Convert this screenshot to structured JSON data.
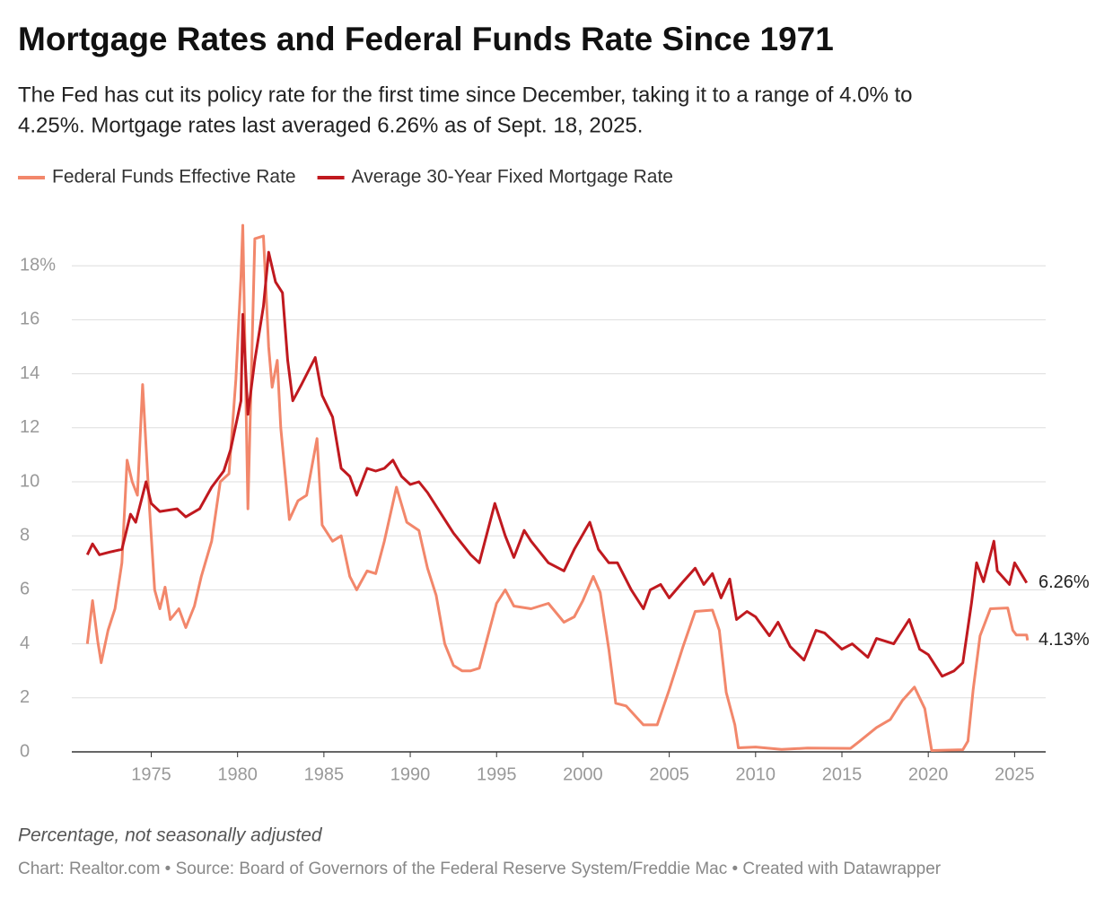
{
  "chart_data": {
    "type": "line",
    "title": "Mortgage Rates and Federal Funds Rate Since 1971",
    "subtitle": [
      "The Fed has cut its policy rate for the first time since December, taking it to a range of 4.0% to",
      "4.25%. Mortgage rates last averaged 6.26% as of Sept. 18, 2025."
    ],
    "note": "Percentage, not seasonally adjusted",
    "source": "Chart: Realtor.com • Source: Board of Governors of the Federal Reserve System/Freddie Mac • Created with Datawrapper",
    "xlim": [
      1970.4,
      2026.8
    ],
    "xticks": [
      1975,
      1980,
      1985,
      1990,
      1995,
      2000,
      2005,
      2010,
      2015,
      2020,
      2025
    ],
    "ylim": [
      0,
      20
    ],
    "yticks": [
      0,
      2,
      4,
      6,
      8,
      10,
      12,
      14,
      {
        "value": 16,
        "label": "16"
      },
      {
        "value": 18,
        "label": "18%"
      }
    ],
    "grid": true,
    "series": [
      {
        "name": "Federal Funds Effective Rate",
        "color": "#f2876b",
        "end_label": "4.13%",
        "x": [
          1971.3,
          1971.6,
          1971.9,
          1972.1,
          1972.5,
          1972.9,
          1973.3,
          1973.6,
          1973.9,
          1974.2,
          1974.5,
          1974.9,
          1975.2,
          1975.5,
          1975.8,
          1976.1,
          1976.6,
          1977.0,
          1977.5,
          1977.9,
          1978.5,
          1979.0,
          1979.5,
          1979.9,
          1980.2,
          1980.3,
          1980.6,
          1981.0,
          1981.5,
          1981.8,
          1982.0,
          1982.3,
          1982.5,
          1982.8,
          1983.0,
          1983.5,
          1984.0,
          1984.6,
          1984.9,
          1985.5,
          1986.0,
          1986.5,
          1986.9,
          1987.5,
          1988.0,
          1988.5,
          1989.2,
          1989.8,
          1990.5,
          1991.0,
          1991.5,
          1992.0,
          1992.5,
          1993.0,
          1993.5,
          1994.0,
          1994.5,
          1995.0,
          1995.5,
          1996.0,
          1997.0,
          1998.0,
          1998.9,
          1999.5,
          2000.0,
          2000.6,
          2001.0,
          2001.5,
          2001.9,
          2002.5,
          2003.5,
          2004.3,
          2005.0,
          2005.8,
          2006.5,
          2007.5,
          2007.9,
          2008.3,
          2008.8,
          2009.0,
          2010.0,
          2011.5,
          2013.0,
          2015.5,
          2016.0,
          2017.0,
          2017.8,
          2018.5,
          2019.2,
          2019.8,
          2020.2,
          2022.0,
          2022.3,
          2022.6,
          2023.0,
          2023.6,
          2024.6,
          2024.9,
          2025.1,
          2025.7,
          2025.75
        ],
        "values": [
          4.0,
          5.6,
          4.1,
          3.3,
          4.5,
          5.3,
          7.0,
          10.8,
          10.0,
          9.5,
          13.6,
          9.0,
          6.0,
          5.3,
          6.1,
          4.9,
          5.3,
          4.6,
          5.4,
          6.5,
          7.8,
          10.0,
          10.3,
          13.8,
          17.6,
          19.5,
          9.0,
          19.0,
          19.1,
          15.0,
          13.5,
          14.5,
          12.0,
          10.0,
          8.6,
          9.3,
          9.5,
          11.6,
          8.4,
          7.8,
          8.0,
          6.5,
          6.0,
          6.7,
          6.6,
          7.8,
          9.8,
          8.5,
          8.2,
          6.8,
          5.8,
          4.0,
          3.2,
          3.0,
          3.0,
          3.1,
          4.3,
          5.5,
          6.0,
          5.4,
          5.3,
          5.5,
          4.8,
          5.0,
          5.6,
          6.5,
          5.9,
          3.8,
          1.8,
          1.7,
          1.0,
          1.0,
          2.3,
          3.9,
          5.2,
          5.25,
          4.5,
          2.2,
          1.0,
          0.15,
          0.18,
          0.09,
          0.14,
          0.13,
          0.38,
          0.9,
          1.2,
          1.9,
          2.4,
          1.6,
          0.05,
          0.08,
          0.4,
          2.3,
          4.3,
          5.3,
          5.33,
          4.5,
          4.33,
          4.33,
          4.13
        ]
      },
      {
        "name": "Average 30-Year Fixed Mortgage Rate",
        "color": "#c0191f",
        "end_label": "6.26%",
        "x": [
          1971.3,
          1971.6,
          1972.0,
          1972.6,
          1973.3,
          1973.8,
          1974.1,
          1974.7,
          1975.0,
          1975.5,
          1976.5,
          1977.0,
          1977.8,
          1978.5,
          1979.2,
          1979.6,
          1980.2,
          1980.3,
          1980.6,
          1981.0,
          1981.5,
          1981.8,
          1982.2,
          1982.6,
          1982.9,
          1983.2,
          1983.7,
          1984.5,
          1984.9,
          1985.5,
          1986.0,
          1986.5,
          1986.9,
          1987.5,
          1988.0,
          1988.5,
          1989.0,
          1989.5,
          1990.0,
          1990.5,
          1991.0,
          1992.0,
          1992.5,
          1993.5,
          1994.0,
          1994.9,
          1995.5,
          1996.0,
          1996.6,
          1997.0,
          1998.0,
          1998.9,
          1999.5,
          2000.4,
          2000.9,
          2001.5,
          2002.0,
          2002.8,
          2003.5,
          2003.9,
          2004.5,
          2005.0,
          2005.8,
          2006.5,
          2007.0,
          2007.5,
          2008.0,
          2008.5,
          2008.9,
          2009.5,
          2010.0,
          2010.8,
          2011.3,
          2012.0,
          2012.8,
          2013.5,
          2014.0,
          2015.0,
          2015.6,
          2016.5,
          2017.0,
          2018.0,
          2018.9,
          2019.5,
          2020.0,
          2020.8,
          2021.5,
          2022.0,
          2022.5,
          2022.8,
          2023.2,
          2023.8,
          2024.0,
          2024.7,
          2025.0,
          2025.7
        ],
        "values": [
          7.3,
          7.7,
          7.3,
          7.4,
          7.5,
          8.8,
          8.5,
          10.0,
          9.2,
          8.9,
          9.0,
          8.7,
          9.0,
          9.8,
          10.4,
          11.2,
          13.0,
          16.2,
          12.5,
          14.5,
          16.5,
          18.5,
          17.4,
          17.0,
          14.5,
          13.0,
          13.6,
          14.6,
          13.2,
          12.4,
          10.5,
          10.2,
          9.5,
          10.5,
          10.4,
          10.5,
          10.8,
          10.2,
          9.9,
          10.0,
          9.6,
          8.6,
          8.1,
          7.3,
          7.0,
          9.2,
          8.0,
          7.2,
          8.2,
          7.8,
          7.0,
          6.7,
          7.5,
          8.5,
          7.5,
          7.0,
          7.0,
          6.0,
          5.3,
          6.0,
          6.2,
          5.7,
          6.3,
          6.8,
          6.2,
          6.6,
          5.7,
          6.4,
          4.9,
          5.2,
          5.0,
          4.3,
          4.8,
          3.9,
          3.4,
          4.5,
          4.4,
          3.8,
          4.0,
          3.5,
          4.2,
          4.0,
          4.9,
          3.8,
          3.6,
          2.8,
          3.0,
          3.3,
          5.5,
          7.0,
          6.3,
          7.8,
          6.7,
          6.2,
          7.0,
          6.26
        ]
      }
    ]
  }
}
